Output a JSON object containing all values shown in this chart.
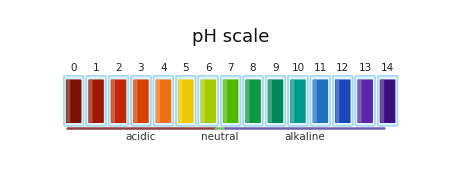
{
  "title": "pH scale",
  "ph_values": [
    0,
    1,
    2,
    3,
    4,
    5,
    6,
    7,
    8,
    9,
    10,
    11,
    12,
    13,
    14
  ],
  "liquid_colors": [
    "#7B1200",
    "#A01800",
    "#C02800",
    "#D84000",
    "#EE7010",
    "#EEC800",
    "#A8C800",
    "#50B800",
    "#109840",
    "#008858",
    "#009888",
    "#2070C0",
    "#1848B8",
    "#5828A8",
    "#3A1080"
  ],
  "glass_outer_color": "#A8D8F0",
  "glass_inner_color": "#E0F4FF",
  "glass_highlight": "#FFFFFF",
  "acidic_line_color": "#904040",
  "neutral_line_color": "#70B870",
  "alkaline_line_color": "#7060B0",
  "acidic_label": "acidic",
  "neutral_label": "neutral",
  "alkaline_label": "alkaline",
  "background_color": "#FFFFFF",
  "title_fontsize": 13,
  "label_fontsize": 7.5,
  "number_fontsize": 7.5
}
